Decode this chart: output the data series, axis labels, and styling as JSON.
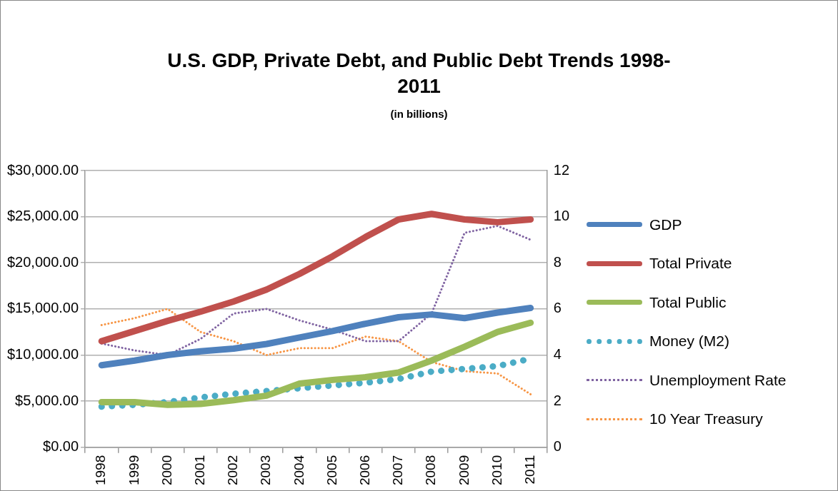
{
  "chart_data": {
    "type": "line",
    "title": "U.S. GDP, Private Debt, and Public Debt Trends 1998-2011",
    "subtitle": "(in billions)",
    "categories": [
      "1998",
      "1999",
      "2000",
      "2001",
      "2002",
      "2003",
      "2004",
      "2005",
      "2006",
      "2007",
      "2008",
      "2009",
      "2010",
      "2011"
    ],
    "series": [
      {
        "name": "GDP",
        "color": "#4f81bd",
        "line_style": "solid",
        "values": [
          8900,
          9400,
          10000,
          10400,
          10700,
          11200,
          11900,
          12600,
          13400,
          14100,
          14400,
          14000,
          14600,
          15100
        ]
      },
      {
        "name": "Total Private",
        "color": "#c0504d",
        "line_style": "solid",
        "values": [
          11500,
          12600,
          13700,
          14700,
          15800,
          17100,
          18800,
          20700,
          22800,
          24700,
          25300,
          24700,
          24400,
          24700
        ]
      },
      {
        "name": "Total Public",
        "color": "#9bbb59",
        "line_style": "solid",
        "values": [
          4900,
          4900,
          4600,
          4700,
          5100,
          5600,
          6900,
          7300,
          7600,
          8100,
          9400,
          10900,
          12500,
          13500
        ]
      },
      {
        "name": "Money (M2)",
        "color": "#4bacc6",
        "line_style": "dotted",
        "values": [
          4400,
          4600,
          4900,
          5400,
          5800,
          6100,
          6400,
          6700,
          7000,
          7400,
          8200,
          8500,
          8800,
          9600
        ]
      },
      {
        "name": "Unemployment Rate",
        "color": "#8064a2",
        "line_style": "dotted",
        "axis": "y2",
        "values": [
          4.5,
          4.2,
          4.0,
          4.7,
          5.8,
          6.0,
          5.5,
          5.1,
          4.6,
          4.6,
          5.8,
          9.3,
          9.6,
          9.0
        ]
      },
      {
        "name": "10 Year Treasury",
        "color": "#f79646",
        "line_style": "dotted",
        "axis": "y2",
        "values": [
          5.3,
          5.6,
          6.0,
          5.0,
          4.6,
          4.0,
          4.3,
          4.3,
          4.8,
          4.6,
          3.7,
          3.3,
          3.2,
          2.3
        ]
      }
    ],
    "ylim": [
      0,
      30000
    ],
    "yticks": [
      {
        "value": 0,
        "label": "$0.00"
      },
      {
        "value": 5000,
        "label": "$5,000.00"
      },
      {
        "value": 10000,
        "label": "$10,000.00"
      },
      {
        "value": 15000,
        "label": "$15,000.00"
      },
      {
        "value": 20000,
        "label": "$20,000.00"
      },
      {
        "value": 25000,
        "label": "$25,000.00"
      },
      {
        "value": 30000,
        "label": "$30,000.00"
      }
    ],
    "y2lim": [
      0,
      12
    ],
    "y2ticks": [
      0,
      2,
      4,
      6,
      8,
      10,
      12
    ],
    "grid": "y",
    "legend": "right",
    "marker": "none"
  }
}
